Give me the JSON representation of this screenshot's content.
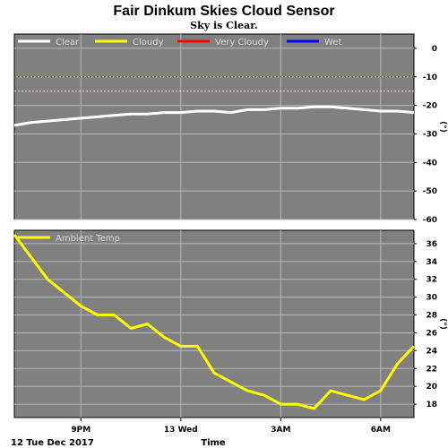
{
  "title": "Fair Dinkum Skies Cloud Sensor",
  "subtitle": "Sky is Clear.",
  "date_label": "12 Tue Dec 2017",
  "xlabel": "Time",
  "x_ticks": [
    "9PM",
    "13 Wed",
    "3AM",
    "6AM"
  ],
  "colors": {
    "plot_bg": "#808080",
    "grid": "#b8b8b8",
    "clear": "#ffffff",
    "cloudy": "#ffff00",
    "very_cloudy": "#ff0000",
    "wet": "#0000ff"
  },
  "chart_data": [
    {
      "type": "line",
      "name": "sky-temperature",
      "legend": [
        "Clear",
        "Cloudy",
        "Very Cloudy",
        "Wet"
      ],
      "ylabel": "(°)",
      "ylim": [
        -60,
        5
      ],
      "yticks": [
        0,
        -10,
        -20,
        -30,
        -40,
        -50,
        -60
      ],
      "thresholds": [
        {
          "label": "Cloudy",
          "value": -15,
          "color": "#ffff00"
        },
        {
          "label": "Very Cloudy",
          "value": -10,
          "color": "#ff0000"
        }
      ],
      "x_hours": [
        0.0,
        0.5,
        1.0,
        1.5,
        2.0,
        2.5,
        3.0,
        3.5,
        4.0,
        4.5,
        5.0,
        5.5,
        6.0,
        6.5,
        7.0,
        7.5,
        8.0,
        8.5,
        9.0,
        9.5,
        10.0,
        10.5,
        11.0,
        11.5,
        12.0
      ],
      "values": [
        -27,
        -26,
        -25.5,
        -25,
        -24.5,
        -24,
        -23.5,
        -23,
        -23,
        -22.5,
        -22.5,
        -22,
        -22,
        -22.5,
        -21.5,
        -21.5,
        -21,
        -21,
        -20.5,
        -20.5,
        -21,
        -21.5,
        -22,
        -22,
        -22.5
      ]
    },
    {
      "type": "line",
      "name": "ambient-temperature",
      "legend": [
        "Ambient Temp"
      ],
      "ylabel": "(°)",
      "ylim": [
        16.5,
        37.5
      ],
      "yticks": [
        18,
        20,
        22,
        24,
        26,
        28,
        30,
        32,
        34,
        36
      ],
      "x_hours": [
        0.0,
        0.5,
        1.0,
        1.5,
        2.0,
        2.5,
        3.0,
        3.5,
        4.0,
        4.5,
        5.0,
        5.5,
        6.0,
        6.5,
        7.0,
        7.5,
        8.0,
        8.5,
        9.0,
        9.5,
        10.0,
        10.5,
        11.0,
        11.5,
        12.0
      ],
      "values": [
        37,
        34.5,
        32,
        30.5,
        29,
        28,
        28,
        26.5,
        27,
        25.5,
        24.5,
        24.5,
        21.5,
        20.5,
        19.5,
        19,
        18,
        18,
        17.5,
        19.5,
        19,
        18.5,
        19.5,
        22.5,
        24.5
      ]
    }
  ]
}
